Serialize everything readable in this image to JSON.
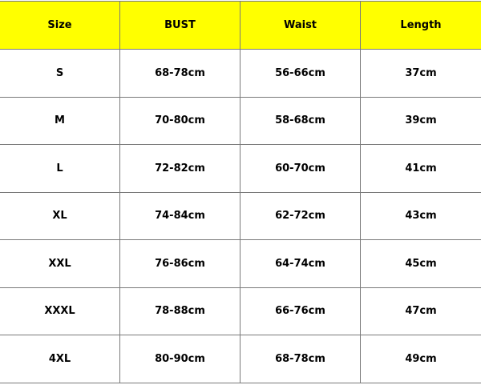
{
  "header_color": "#ffff00",
  "columns": [
    "Size",
    "BUST",
    "Waist",
    "Length"
  ],
  "rows": [
    [
      "S",
      "68-78cm",
      "56-66cm",
      "37cm"
    ],
    [
      "M",
      "70-80cm",
      "58-68cm",
      "39cm"
    ],
    [
      "L",
      "72-82cm",
      "60-70cm",
      "41cm"
    ],
    [
      "XL",
      "74-84cm",
      "62-72cm",
      "43cm"
    ],
    [
      "XXL",
      "76-86cm",
      "64-74cm",
      "45cm"
    ],
    [
      "XXXL",
      "78-88cm",
      "66-76cm",
      "47cm"
    ],
    [
      "4XL",
      "80-90cm",
      "68-78cm",
      "49cm"
    ]
  ]
}
